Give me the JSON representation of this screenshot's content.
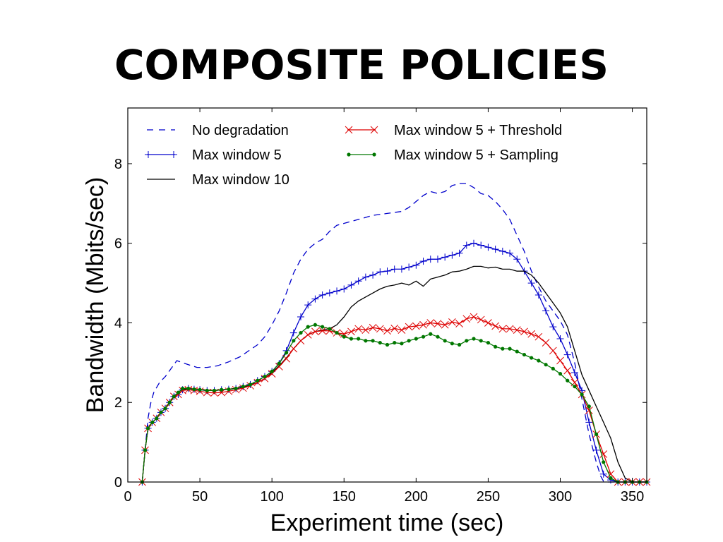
{
  "slide": {
    "title": "COMPOSITE POLICIES"
  },
  "chart_data": {
    "type": "line",
    "xlabel": "Experiment time (sec)",
    "ylabel": "Bandwidth (Mbits/sec)",
    "xlim": [
      0,
      360
    ],
    "ylim": [
      0,
      9.4
    ],
    "xticks": [
      0,
      50,
      100,
      150,
      200,
      250,
      300,
      350
    ],
    "yticks": [
      0,
      2,
      4,
      6,
      8
    ],
    "grid": false,
    "legend_position": "top-left",
    "series": [
      {
        "name": "No degradation",
        "color": "#0000cc",
        "style": "dashed",
        "marker": "none",
        "x": [
          10,
          12,
          14,
          16,
          18,
          22,
          26,
          30,
          34,
          38,
          42,
          48,
          55,
          62,
          70,
          78,
          84,
          90,
          95,
          100,
          105,
          110,
          115,
          120,
          125,
          130,
          135,
          140,
          145,
          150,
          160,
          170,
          180,
          190,
          195,
          200,
          205,
          210,
          215,
          220,
          225,
          230,
          235,
          240,
          245,
          250,
          255,
          260,
          265,
          270,
          275,
          280,
          285,
          290,
          295,
          300,
          305,
          310,
          315,
          320,
          325,
          328,
          330,
          332,
          335,
          340,
          350,
          360
        ],
        "y": [
          0,
          0.8,
          1.6,
          2.0,
          2.25,
          2.5,
          2.65,
          2.85,
          3.05,
          3.0,
          2.95,
          2.88,
          2.88,
          2.92,
          3.02,
          3.15,
          3.3,
          3.45,
          3.65,
          3.95,
          4.3,
          4.75,
          5.25,
          5.6,
          5.85,
          6.0,
          6.1,
          6.3,
          6.45,
          6.5,
          6.6,
          6.7,
          6.75,
          6.8,
          6.9,
          7.05,
          7.2,
          7.3,
          7.25,
          7.3,
          7.45,
          7.5,
          7.5,
          7.4,
          7.25,
          7.2,
          7.05,
          6.85,
          6.6,
          6.2,
          5.8,
          5.3,
          4.9,
          4.55,
          4.3,
          4.05,
          3.7,
          3.0,
          2.1,
          1.2,
          0.5,
          0.15,
          0.02,
          0,
          0,
          0,
          0,
          0
        ]
      },
      {
        "name": "Max window 5",
        "color": "#0000cc",
        "style": "solid",
        "marker": "plus",
        "x": [
          10,
          12,
          14,
          17,
          20,
          23,
          26,
          29,
          32,
          35,
          38,
          42,
          46,
          50,
          55,
          60,
          65,
          70,
          75,
          80,
          85,
          90,
          95,
          100,
          105,
          110,
          115,
          120,
          125,
          130,
          135,
          140,
          145,
          150,
          155,
          160,
          165,
          170,
          175,
          180,
          185,
          190,
          195,
          200,
          205,
          210,
          215,
          220,
          225,
          230,
          235,
          240,
          245,
          250,
          255,
          260,
          265,
          270,
          275,
          280,
          285,
          290,
          295,
          300,
          305,
          310,
          315,
          320,
          325,
          330,
          335,
          340,
          345,
          350,
          355,
          360
        ],
        "y": [
          0,
          0.8,
          1.35,
          1.5,
          1.6,
          1.75,
          1.85,
          2.0,
          2.15,
          2.2,
          2.32,
          2.35,
          2.33,
          2.32,
          2.3,
          2.3,
          2.32,
          2.33,
          2.35,
          2.4,
          2.45,
          2.55,
          2.65,
          2.78,
          2.98,
          3.3,
          3.75,
          4.15,
          4.45,
          4.6,
          4.7,
          4.75,
          4.8,
          4.85,
          4.95,
          5.05,
          5.15,
          5.2,
          5.28,
          5.3,
          5.35,
          5.35,
          5.4,
          5.45,
          5.55,
          5.6,
          5.6,
          5.65,
          5.7,
          5.75,
          5.95,
          6.0,
          5.95,
          5.9,
          5.85,
          5.8,
          5.75,
          5.6,
          5.3,
          5.0,
          4.7,
          4.3,
          3.9,
          3.6,
          3.2,
          2.75,
          2.3,
          1.5,
          0.8,
          0.2,
          0.05,
          0,
          0,
          0,
          0,
          0
        ]
      },
      {
        "name": "Max window 10",
        "color": "#000000",
        "style": "solid",
        "marker": "none",
        "x": [
          10,
          12,
          14,
          17,
          20,
          23,
          26,
          29,
          32,
          35,
          38,
          42,
          46,
          50,
          60,
          70,
          80,
          90,
          95,
          100,
          105,
          110,
          115,
          120,
          125,
          130,
          135,
          140,
          145,
          150,
          155,
          160,
          165,
          170,
          175,
          180,
          185,
          190,
          195,
          200,
          205,
          210,
          215,
          220,
          225,
          230,
          235,
          240,
          245,
          250,
          255,
          260,
          265,
          270,
          275,
          280,
          285,
          290,
          295,
          300,
          305,
          310,
          315,
          320,
          325,
          330,
          335,
          340,
          345,
          350,
          360
        ],
        "y": [
          0,
          0.8,
          1.35,
          1.5,
          1.6,
          1.75,
          1.85,
          2.0,
          2.15,
          2.2,
          2.32,
          2.35,
          2.33,
          2.32,
          2.3,
          2.33,
          2.38,
          2.5,
          2.6,
          2.75,
          2.92,
          3.12,
          3.35,
          3.55,
          3.7,
          3.78,
          3.82,
          3.85,
          3.95,
          4.15,
          4.4,
          4.55,
          4.65,
          4.75,
          4.85,
          4.92,
          4.95,
          5.0,
          4.95,
          5.05,
          4.92,
          5.1,
          5.15,
          5.2,
          5.28,
          5.3,
          5.35,
          5.42,
          5.42,
          5.38,
          5.4,
          5.35,
          5.35,
          5.3,
          5.3,
          5.2,
          5.0,
          4.75,
          4.5,
          4.25,
          3.9,
          3.3,
          2.7,
          2.3,
          1.9,
          1.5,
          1.1,
          0.5,
          0.1,
          0,
          0
        ]
      },
      {
        "name": "Max window 5 + Threshold",
        "color": "#dd0000",
        "style": "solid",
        "marker": "x",
        "x": [
          10,
          12,
          14,
          17,
          20,
          23,
          26,
          29,
          32,
          35,
          38,
          42,
          46,
          50,
          55,
          60,
          65,
          70,
          75,
          80,
          85,
          90,
          95,
          100,
          105,
          110,
          115,
          120,
          125,
          130,
          135,
          140,
          145,
          150,
          155,
          160,
          165,
          170,
          175,
          180,
          185,
          190,
          195,
          200,
          205,
          210,
          215,
          220,
          225,
          230,
          235,
          240,
          245,
          250,
          255,
          260,
          265,
          270,
          275,
          280,
          285,
          290,
          295,
          300,
          305,
          310,
          315,
          320,
          325,
          330,
          335,
          340,
          345,
          350,
          355,
          360
        ],
        "y": [
          0,
          0.8,
          1.35,
          1.5,
          1.6,
          1.75,
          1.85,
          2.0,
          2.15,
          2.2,
          2.3,
          2.32,
          2.3,
          2.28,
          2.25,
          2.24,
          2.25,
          2.28,
          2.32,
          2.36,
          2.42,
          2.5,
          2.6,
          2.72,
          2.9,
          3.1,
          3.35,
          3.55,
          3.7,
          3.78,
          3.8,
          3.8,
          3.75,
          3.72,
          3.78,
          3.85,
          3.82,
          3.88,
          3.85,
          3.8,
          3.86,
          3.82,
          3.9,
          3.92,
          3.95,
          4.0,
          3.98,
          3.95,
          4.02,
          3.98,
          4.1,
          4.15,
          4.08,
          4.0,
          3.92,
          3.85,
          3.85,
          3.82,
          3.78,
          3.72,
          3.65,
          3.5,
          3.3,
          3.05,
          2.8,
          2.5,
          2.2,
          1.8,
          1.2,
          0.7,
          0.2,
          0,
          0,
          0,
          0,
          0
        ]
      },
      {
        "name": "Max window 5 + Sampling",
        "color": "#007700",
        "style": "solid",
        "marker": "dot",
        "x": [
          10,
          12,
          14,
          17,
          20,
          23,
          26,
          29,
          32,
          35,
          38,
          42,
          46,
          50,
          55,
          60,
          65,
          70,
          75,
          80,
          85,
          90,
          95,
          100,
          105,
          110,
          115,
          120,
          125,
          130,
          135,
          140,
          145,
          150,
          155,
          160,
          165,
          170,
          175,
          180,
          185,
          190,
          195,
          200,
          205,
          210,
          215,
          220,
          225,
          230,
          235,
          240,
          245,
          250,
          255,
          260,
          265,
          270,
          275,
          280,
          285,
          290,
          295,
          300,
          305,
          310,
          315,
          320,
          325,
          330,
          335,
          340,
          345,
          350,
          355,
          360
        ],
        "y": [
          0,
          0.8,
          1.35,
          1.5,
          1.6,
          1.75,
          1.85,
          2.0,
          2.15,
          2.25,
          2.35,
          2.35,
          2.33,
          2.32,
          2.3,
          2.3,
          2.32,
          2.33,
          2.35,
          2.4,
          2.45,
          2.55,
          2.65,
          2.78,
          2.98,
          3.25,
          3.55,
          3.75,
          3.9,
          3.95,
          3.9,
          3.85,
          3.75,
          3.65,
          3.6,
          3.6,
          3.55,
          3.55,
          3.5,
          3.45,
          3.5,
          3.48,
          3.55,
          3.6,
          3.65,
          3.72,
          3.65,
          3.55,
          3.48,
          3.45,
          3.55,
          3.6,
          3.55,
          3.5,
          3.4,
          3.35,
          3.35,
          3.28,
          3.2,
          3.12,
          3.05,
          2.95,
          2.85,
          2.72,
          2.55,
          2.4,
          2.2,
          1.9,
          1.2,
          0.5,
          0.1,
          0,
          0,
          0,
          0,
          0
        ]
      }
    ]
  }
}
